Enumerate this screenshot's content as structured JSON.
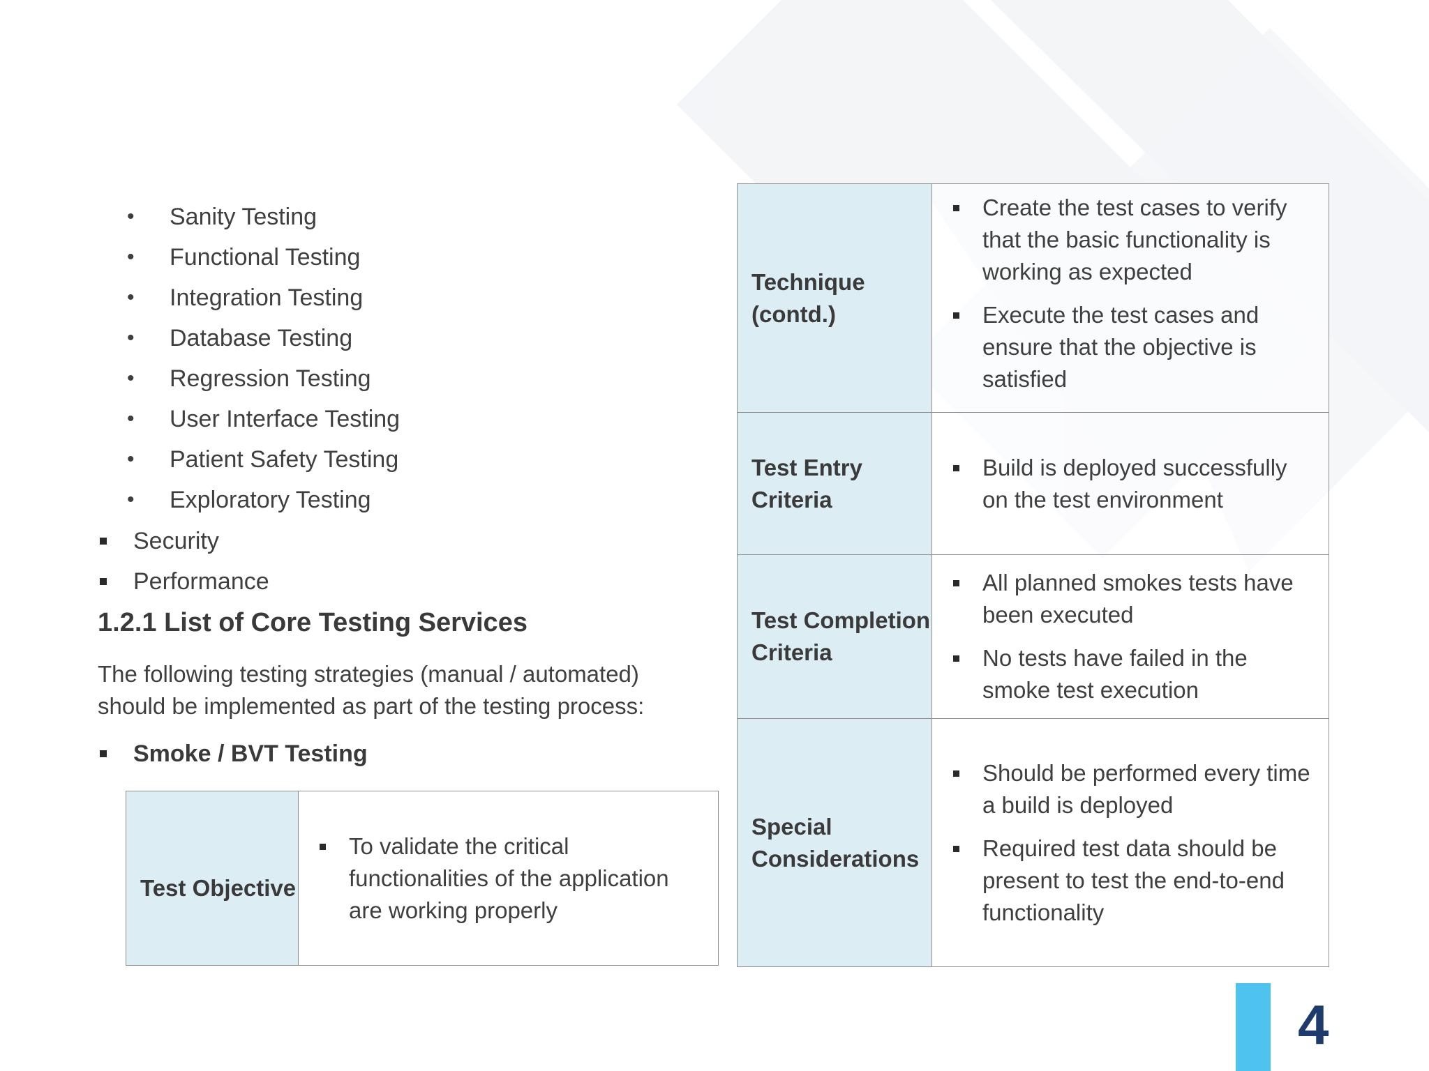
{
  "sub_items": [
    "Sanity Testing",
    "Functional Testing",
    "Integration Testing",
    "Database Testing",
    "Regression Testing",
    "User Interface Testing",
    "Patient Safety Testing",
    "Exploratory Testing"
  ],
  "top_items": [
    "Security",
    "Performance"
  ],
  "section": {
    "heading": "1.2.1 List of Core Testing Services",
    "paragraph": "The following testing strategies (manual / automated) should be implemented as part of the testing process:",
    "bullet": "Smoke / BVT Testing"
  },
  "left_table": {
    "label": "Test Objective",
    "items": [
      "To validate the critical functionalities of the application are working properly"
    ]
  },
  "right_table": {
    "rows": [
      {
        "label": "Technique (contd.)",
        "items": [
          "Create the test cases to verify that the basic functionality is working as expected",
          "Execute the test cases and ensure that the objective is satisfied"
        ]
      },
      {
        "label": "Test Entry Criteria",
        "items": [
          "Build is deployed successfully on the test environment"
        ]
      },
      {
        "label": "Test Completion Criteria",
        "items": [
          "All planned smokes tests have been executed",
          "No tests have failed in the smoke test execution"
        ]
      },
      {
        "label": "Special Considerations",
        "items": [
          "Should be performed every time a build is deployed",
          "Required test data should be present to test the end-to-end functionality"
        ]
      }
    ]
  },
  "page_number": "4",
  "colors": {
    "label_bg": "#dcedf4",
    "page_bar": "#4ec3f0",
    "page_number": "#1f3b6b"
  }
}
